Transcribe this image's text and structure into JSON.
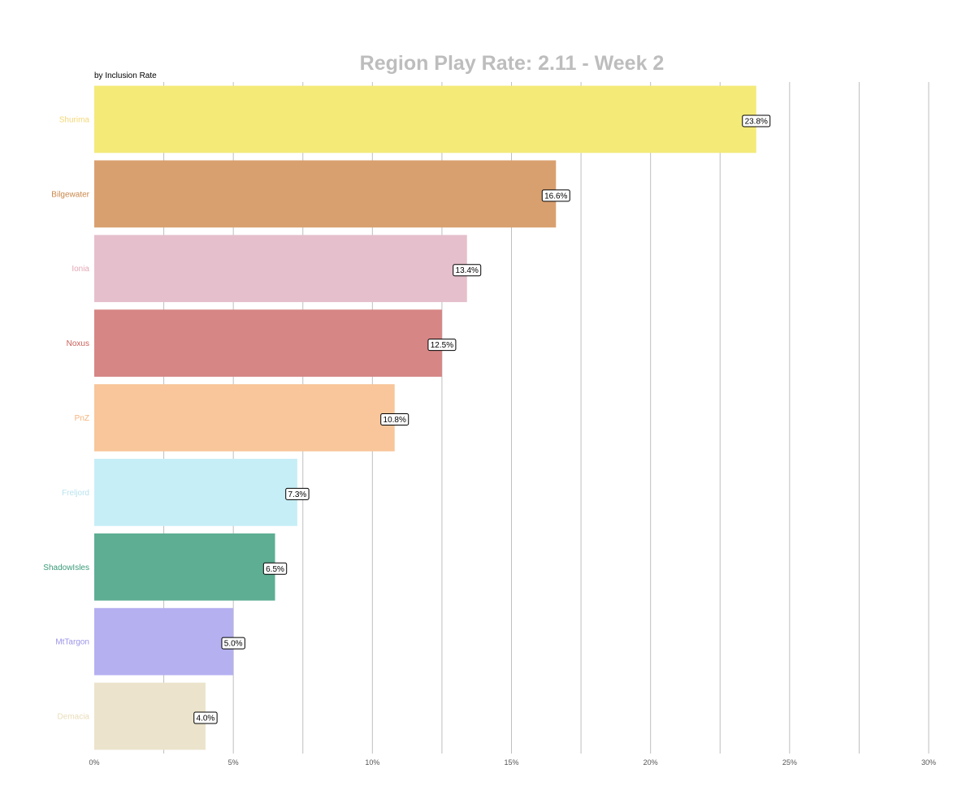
{
  "chart_data": {
    "type": "bar",
    "orientation": "horizontal",
    "title": "Region Play Rate: 2.11 - Week 2",
    "subtitle": "by Inclusion Rate",
    "xlabel": "",
    "ylabel": "",
    "xlim": [
      0,
      30
    ],
    "x_ticks": [
      0,
      5,
      10,
      15,
      20,
      25,
      30
    ],
    "x_tick_labels": [
      "0%",
      "5%",
      "10%",
      "15%",
      "20%",
      "25%",
      "30%"
    ],
    "grid": true,
    "legend": "none",
    "categories": [
      "Shurima",
      "Bilgewater",
      "Ionia",
      "Noxus",
      "PnZ",
      "Freljord",
      "ShadowIsles",
      "MtTargon",
      "Demacia"
    ],
    "values": [
      23.8,
      16.6,
      13.4,
      12.5,
      10.8,
      7.3,
      6.5,
      5.0,
      4.0
    ],
    "value_labels": [
      "23.8%",
      "16.6%",
      "13.4%",
      "12.5%",
      "10.8%",
      "7.3%",
      "6.5%",
      "5.0%",
      "4.0%"
    ],
    "bar_colors": [
      "#f4ea78",
      "#d9a06f",
      "#e5bfcb",
      "#d68685",
      "#f8c69a",
      "#c6eef7",
      "#5dae93",
      "#b5b0f0",
      "#ebe3cb"
    ],
    "label_colors": [
      "#f4d879",
      "#c9874a",
      "#e3a8b7",
      "#c9605a",
      "#f5b37a",
      "#b9e3ef",
      "#3a9a78",
      "#9b94e8",
      "#e9dcb8"
    ]
  }
}
